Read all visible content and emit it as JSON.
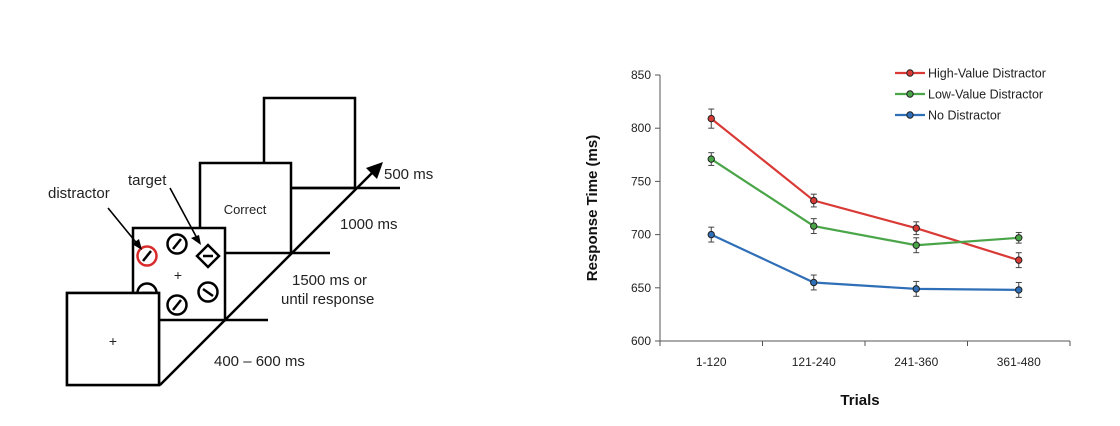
{
  "diagram": {
    "labels": {
      "distractor": "distractor",
      "target": "target",
      "feedback": "Correct",
      "fixation": "+",
      "t_iti": "500 ms",
      "t_feedback": "1000 ms",
      "t_search_line1": "1500 ms or",
      "t_search_line2": "until response",
      "t_fixation": "400 – 600 ms"
    },
    "colors": {
      "distractor_ring": "#d92b2b",
      "line": "#000000"
    }
  },
  "chart_data": {
    "type": "line",
    "categories": [
      "1-120",
      "121-240",
      "241-360",
      "361-480"
    ],
    "xlabel": "Trials",
    "ylabel": "Response Time (ms)",
    "ylim": [
      600,
      850
    ],
    "yticks": [
      600,
      650,
      700,
      750,
      800,
      850
    ],
    "grid": false,
    "legend_position": "top-right",
    "series": [
      {
        "name": "High-Value Distractor",
        "color": "#d93a35",
        "values": [
          809,
          732,
          706,
          676
        ],
        "errors": [
          9,
          6,
          6,
          7
        ]
      },
      {
        "name": "Low-Value Distractor",
        "color": "#4aa548",
        "values": [
          771,
          708,
          690,
          697
        ],
        "errors": [
          6,
          7,
          7,
          5
        ]
      },
      {
        "name": "No Distractor",
        "color": "#2f6fb8",
        "values": [
          700,
          655,
          649,
          648
        ],
        "errors": [
          7,
          7,
          7,
          7
        ]
      }
    ]
  }
}
